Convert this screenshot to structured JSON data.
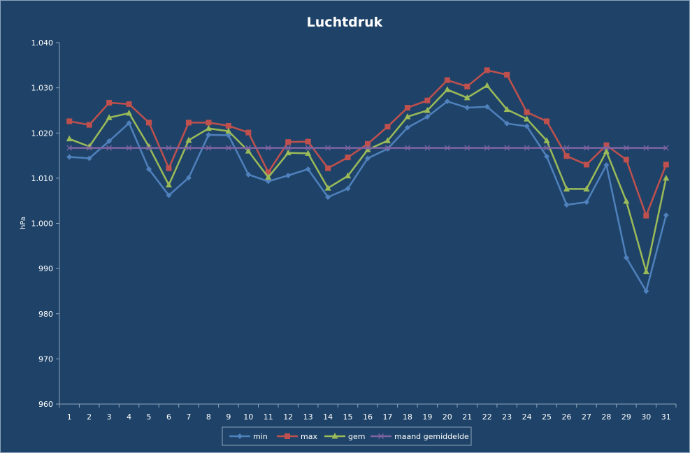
{
  "chart_data": {
    "type": "line",
    "title": "Luchtdruk",
    "xlabel": "",
    "ylabel": "hPa",
    "ylim": [
      960,
      1040
    ],
    "ytick_step": 10,
    "ytick_labels": [
      "960",
      "970",
      "980",
      "990",
      "1.000",
      "1.010",
      "1.020",
      "1.030",
      "1.040"
    ],
    "grid": false,
    "legend_position": "bottom",
    "categories": [
      "1",
      "2",
      "3",
      "4",
      "5",
      "6",
      "7",
      "8",
      "9",
      "10",
      "11",
      "12",
      "13",
      "14",
      "15",
      "16",
      "17",
      "18",
      "19",
      "20",
      "21",
      "22",
      "23",
      "24",
      "25",
      "26",
      "27",
      "28",
      "29",
      "30",
      "31"
    ],
    "series": [
      {
        "name": "min",
        "color": "#4f81bd",
        "marker": "diamond",
        "values": [
          1014.7,
          1014.4,
          1018.2,
          1022.2,
          1012.0,
          1006.2,
          1010.1,
          1019.6,
          1019.5,
          1010.8,
          1009.3,
          1010.6,
          1012.0,
          1005.8,
          1007.7,
          1014.4,
          1016.5,
          1021.2,
          1023.6,
          1027.0,
          1025.6,
          1025.8,
          1022.1,
          1021.5,
          1014.8,
          1004.1,
          1004.7,
          1012.9,
          992.4,
          985.0,
          1001.8
        ]
      },
      {
        "name": "max",
        "color": "#c0504d",
        "marker": "square",
        "values": [
          1022.6,
          1021.8,
          1026.7,
          1026.4,
          1022.3,
          1012.2,
          1022.3,
          1022.3,
          1021.6,
          1020.1,
          1011.3,
          1018.0,
          1018.1,
          1012.2,
          1014.6,
          1017.6,
          1021.4,
          1025.6,
          1027.2,
          1031.7,
          1030.3,
          1033.9,
          1032.9,
          1024.6,
          1022.6,
          1014.9,
          1013.0,
          1017.3,
          1014.1,
          1001.7,
          1013.0
        ]
      },
      {
        "name": "gem",
        "color": "#9bbb59",
        "marker": "triangle",
        "values": [
          1018.7,
          1017.0,
          1023.4,
          1024.4,
          1017.0,
          1008.5,
          1018.4,
          1021.0,
          1020.4,
          1016.0,
          1010.2,
          1015.6,
          1015.5,
          1007.8,
          1010.5,
          1016.3,
          1018.3,
          1023.6,
          1025.0,
          1029.6,
          1027.8,
          1030.5,
          1025.2,
          1023.1,
          1018.3,
          1007.6,
          1007.6,
          1015.9,
          1004.9,
          989.3,
          1010.0
        ]
      },
      {
        "name": "maand gemiddelde",
        "color": "#8064a2",
        "marker": "x",
        "values": [
          1016.7,
          1016.7,
          1016.7,
          1016.7,
          1016.7,
          1016.7,
          1016.7,
          1016.7,
          1016.7,
          1016.7,
          1016.7,
          1016.7,
          1016.7,
          1016.7,
          1016.7,
          1016.7,
          1016.7,
          1016.7,
          1016.7,
          1016.7,
          1016.7,
          1016.7,
          1016.7,
          1016.7,
          1016.7,
          1016.7,
          1016.7,
          1016.7,
          1016.7,
          1016.7,
          1016.7
        ]
      }
    ]
  }
}
